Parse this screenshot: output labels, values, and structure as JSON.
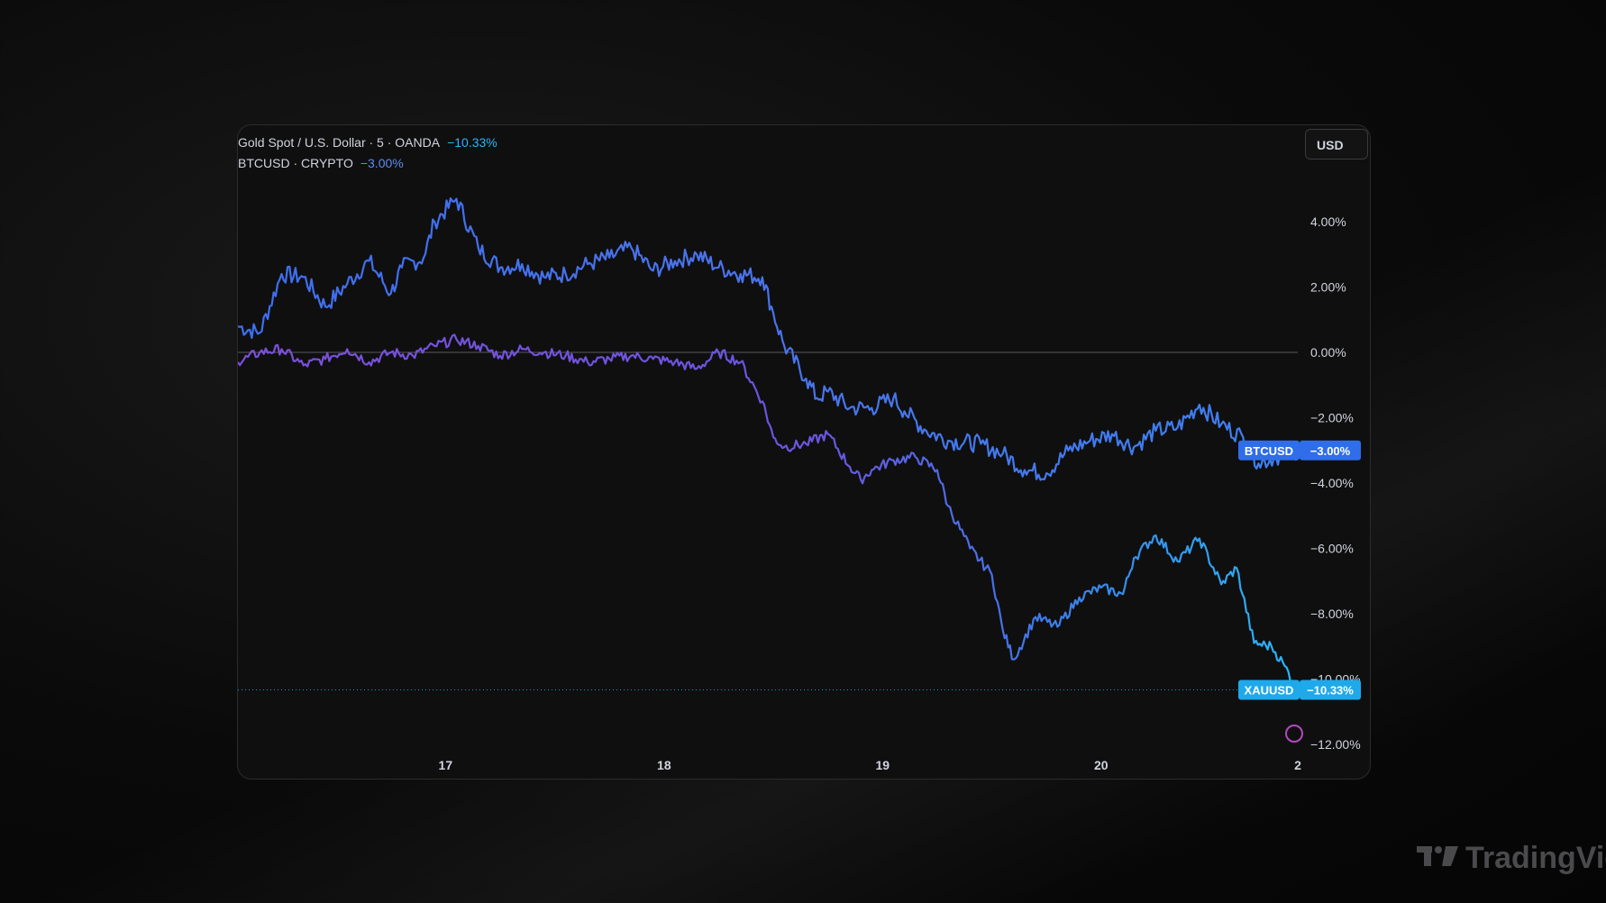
{
  "legend": {
    "gold_label": "Gold Spot / U.S. Dollar · 5 · OANDA",
    "gold_change": "−10.33%",
    "btc_label": "BTCUSD · CRYPTO",
    "btc_change": "−3.00%"
  },
  "currency_button": "USD",
  "watermark": "TradingVie",
  "chart_data": {
    "type": "line",
    "x_ticks": [
      "17",
      "18",
      "19",
      "20",
      "2"
    ],
    "y_ticks": [
      "4.00%",
      "2.00%",
      "0.00%",
      "−2.00%",
      "−4.00%",
      "−6.00%",
      "−8.00%",
      "−10.00%",
      "−12.00%"
    ],
    "ylim": [
      -12.3,
      5.5
    ],
    "xlim": [
      16.05,
      20.9
    ],
    "zero_line": true,
    "grid": false,
    "series": [
      {
        "name": "BTCUSD",
        "label": "BTCUSD",
        "value_label": "−3.00%",
        "color": "#3d7ff0",
        "last": -3.0,
        "x": [
          16.05,
          16.15,
          16.25,
          16.35,
          16.45,
          16.55,
          16.65,
          16.75,
          16.8,
          16.9,
          16.95,
          17.05,
          17.15,
          17.25,
          17.35,
          17.45,
          17.55,
          17.65,
          17.75,
          17.85,
          17.95,
          18.05,
          18.15,
          18.25,
          18.35,
          18.45,
          18.5,
          18.55,
          18.65,
          18.7,
          18.75,
          18.85,
          18.95,
          19.05,
          19.1,
          19.2,
          19.3,
          19.45,
          19.55,
          19.65,
          19.75,
          19.85,
          19.95,
          20.05,
          20.15,
          20.25,
          20.35,
          20.45,
          20.55,
          20.65,
          20.72,
          20.8,
          20.9
        ],
        "y": [
          0.8,
          0.6,
          2.4,
          2.3,
          1.4,
          2.1,
          2.8,
          1.8,
          2.6,
          2.9,
          4.0,
          4.7,
          3.2,
          2.6,
          2.7,
          2.3,
          2.4,
          2.7,
          2.9,
          3.2,
          2.5,
          2.8,
          3.0,
          2.6,
          2.4,
          2.3,
          1.2,
          0.2,
          -0.8,
          -1.4,
          -1.2,
          -1.7,
          -1.7,
          -1.4,
          -1.8,
          -2.4,
          -2.7,
          -2.8,
          -3.1,
          -3.6,
          -3.7,
          -3.0,
          -2.7,
          -2.5,
          -2.9,
          -2.4,
          -2.3,
          -1.6,
          -2.2,
          -2.6,
          -3.4,
          -3.2,
          -3.0
        ]
      },
      {
        "name": "XAUUSD",
        "label": "XAUUSD",
        "value_label": "−10.33%",
        "color": "#29b6f6",
        "last": -10.33,
        "x": [
          16.05,
          16.15,
          16.25,
          16.35,
          16.45,
          16.55,
          16.65,
          16.75,
          16.85,
          16.95,
          17.05,
          17.15,
          17.25,
          17.35,
          17.45,
          17.55,
          17.65,
          17.75,
          17.85,
          17.95,
          18.05,
          18.15,
          18.25,
          18.35,
          18.45,
          18.5,
          18.55,
          18.65,
          18.75,
          18.85,
          18.9,
          18.95,
          19.05,
          19.15,
          19.25,
          19.3,
          19.4,
          19.5,
          19.55,
          19.6,
          19.7,
          19.8,
          19.9,
          20.0,
          20.1,
          20.15,
          20.25,
          20.35,
          20.45,
          20.55,
          20.62,
          20.7,
          20.78,
          20.84,
          20.9
        ],
        "y": [
          -0.3,
          0.0,
          0.1,
          -0.4,
          -0.2,
          0.1,
          -0.3,
          0.0,
          -0.1,
          0.2,
          0.4,
          0.2,
          -0.1,
          0.1,
          0.0,
          -0.1,
          -0.3,
          -0.2,
          -0.1,
          -0.2,
          -0.3,
          -0.5,
          0.0,
          -0.3,
          -1.5,
          -2.6,
          -2.9,
          -2.8,
          -2.5,
          -3.5,
          -3.9,
          -3.6,
          -3.3,
          -3.2,
          -3.6,
          -4.7,
          -6.0,
          -6.8,
          -8.5,
          -9.4,
          -8.1,
          -8.4,
          -7.5,
          -7.2,
          -7.4,
          -6.3,
          -5.6,
          -6.4,
          -5.7,
          -7.1,
          -6.6,
          -8.9,
          -9.0,
          -9.6,
          -10.33
        ]
      }
    ]
  }
}
